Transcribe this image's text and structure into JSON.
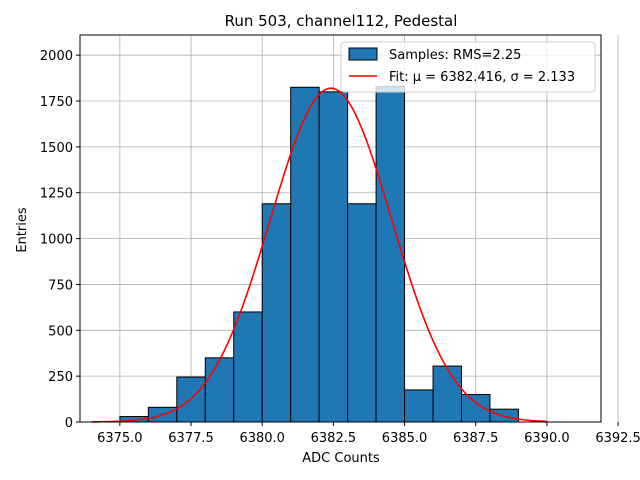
{
  "chart_data": {
    "type": "bar",
    "title": "Run 503, channel112, Pedestal",
    "xlabel": "ADC Counts",
    "ylabel": "Entries",
    "xlim": [
      6373.6,
      6391.9
    ],
    "ylim": [
      0,
      2110
    ],
    "grid": true,
    "legend_position": "top-right",
    "x_ticks": [
      6375.0,
      6377.5,
      6380.0,
      6382.5,
      6385.0,
      6387.5,
      6390.0,
      6392.5
    ],
    "x_tick_labels": [
      "6375.0",
      "6377.5",
      "6380.0",
      "6382.5",
      "6385.0",
      "6387.5",
      "6390.0",
      "6392.5"
    ],
    "y_ticks": [
      0,
      250,
      500,
      750,
      1000,
      1250,
      1500,
      1750,
      2000
    ],
    "y_tick_labels": [
      "0",
      "250",
      "500",
      "750",
      "1000",
      "1250",
      "1500",
      "1750",
      "2000"
    ],
    "histogram": {
      "name": "Samples: RMS=2.25",
      "color": "#1f77b4",
      "edge_color": "#000000",
      "bin_edges": [
        6375,
        6376,
        6377,
        6378,
        6379,
        6380,
        6381,
        6382,
        6383,
        6384,
        6385,
        6386,
        6387,
        6388,
        6389,
        6390,
        6391,
        6392
      ],
      "counts": [
        30,
        80,
        245,
        350,
        600,
        1190,
        1825,
        1800,
        1190,
        1830,
        175,
        305,
        150,
        70,
        0,
        0,
        0
      ]
    },
    "fit": {
      "name": "Fit: μ = 6382.416, σ = 2.133",
      "color": "#ff0000",
      "type": "gaussian",
      "amplitude": 1820,
      "mu": 6382.416,
      "sigma": 2.133,
      "x_range": [
        6374,
        6390
      ]
    }
  },
  "legend": {
    "samples_label": "Samples: RMS=2.25",
    "fit_label": "Fit: μ = 6382.416, σ = 2.133"
  }
}
